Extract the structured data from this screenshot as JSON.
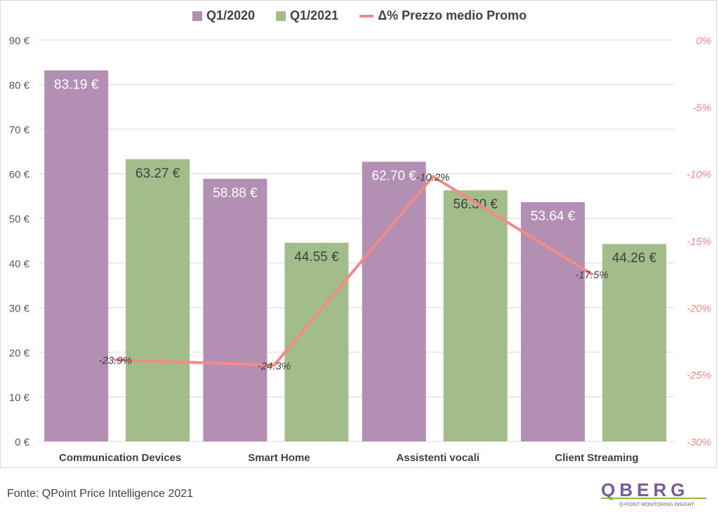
{
  "legend": {
    "q1_2020": "Q1/2020",
    "q1_2021": "Q1/2021",
    "delta": "Δ% Prezzo medio Promo"
  },
  "colors": {
    "q1_2020": "#b48fb4",
    "q1_2021": "#a3bd8a",
    "delta": "#f28b88"
  },
  "source": "Fonte: QPoint Price Intelligence 2021",
  "logo": {
    "wordmark": "QBERG",
    "tagline": "Q-POINT MONITORING INSIGHT"
  },
  "chart_data": {
    "type": "bar",
    "categories": [
      "Communication Devices",
      "Smart Home",
      "Assistenti vocali",
      "Client Streaming"
    ],
    "series": [
      {
        "name": "Q1/2020",
        "values": [
          83.19,
          58.88,
          62.7,
          53.64
        ],
        "labels": [
          "83.19 €",
          "58.88 €",
          "62.70 €",
          "53.64 €"
        ]
      },
      {
        "name": "Q1/2021",
        "values": [
          63.27,
          44.55,
          56.3,
          44.26
        ],
        "labels": [
          "63.27 €",
          "44.55 €",
          "56.30 €",
          "44.26 €"
        ]
      }
    ],
    "line_series": {
      "name": "Δ% Prezzo medio Promo",
      "values": [
        -23.9,
        -24.3,
        -10.2,
        -17.5
      ],
      "labels": [
        "-23.9%",
        "-24.3%",
        "-10.2%",
        "-17.5%"
      ]
    },
    "y_left": {
      "ticks": [
        "0 €",
        "10 €",
        "20 €",
        "30 €",
        "40 €",
        "50 €",
        "60 €",
        "70 €",
        "80 €",
        "90 €"
      ],
      "ylim": [
        0,
        90
      ]
    },
    "y_right": {
      "ticks": [
        "0%",
        "-5%",
        "-10%",
        "-15%",
        "-20%",
        "-25%",
        "-30%"
      ],
      "ylim": [
        -30,
        0
      ]
    },
    "grid": true,
    "legend_position": "top"
  }
}
